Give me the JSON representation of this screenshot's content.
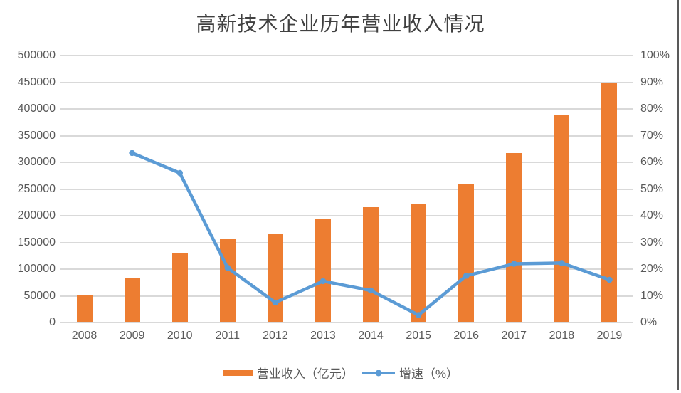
{
  "chart_data": {
    "type": "combo",
    "title": "高新技术企业历年营业收入情况",
    "categories": [
      "2008",
      "2009",
      "2010",
      "2011",
      "2012",
      "2013",
      "2014",
      "2015",
      "2016",
      "2017",
      "2018",
      "2019"
    ],
    "series": [
      {
        "name": "营业收入（亿元）",
        "type": "bar",
        "axis": "left",
        "color": "#ED7D31",
        "values": [
          51000,
          83000,
          130000,
          156000,
          167000,
          194000,
          216000,
          222000,
          260000,
          318000,
          389000,
          450000
        ]
      },
      {
        "name": "增速（%）",
        "type": "line",
        "axis": "right",
        "color": "#5B9BD5",
        "values": [
          null,
          63.5,
          56,
          20.5,
          7.5,
          15.5,
          12,
          2.8,
          17.5,
          22,
          22.3,
          16
        ]
      }
    ],
    "left_axis": {
      "min": 0,
      "max": 500000,
      "step": 50000,
      "ticks": [
        "500000",
        "450000",
        "400000",
        "350000",
        "300000",
        "250000",
        "200000",
        "150000",
        "100000",
        "50000",
        "0"
      ]
    },
    "right_axis": {
      "min": 0,
      "max": 100,
      "step": 10,
      "ticks": [
        "100%",
        "90%",
        "80%",
        "70%",
        "60%",
        "50%",
        "40%",
        "30%",
        "20%",
        "10%",
        "0%"
      ]
    },
    "grid": true,
    "legend_position": "bottom",
    "colors": {
      "gridline": "#D9D9D9",
      "axis_line": "#D9D9D9",
      "tick_label": "#595959",
      "title": "#404040",
      "right_border": "#595959",
      "background": "#FFFFFF"
    }
  }
}
